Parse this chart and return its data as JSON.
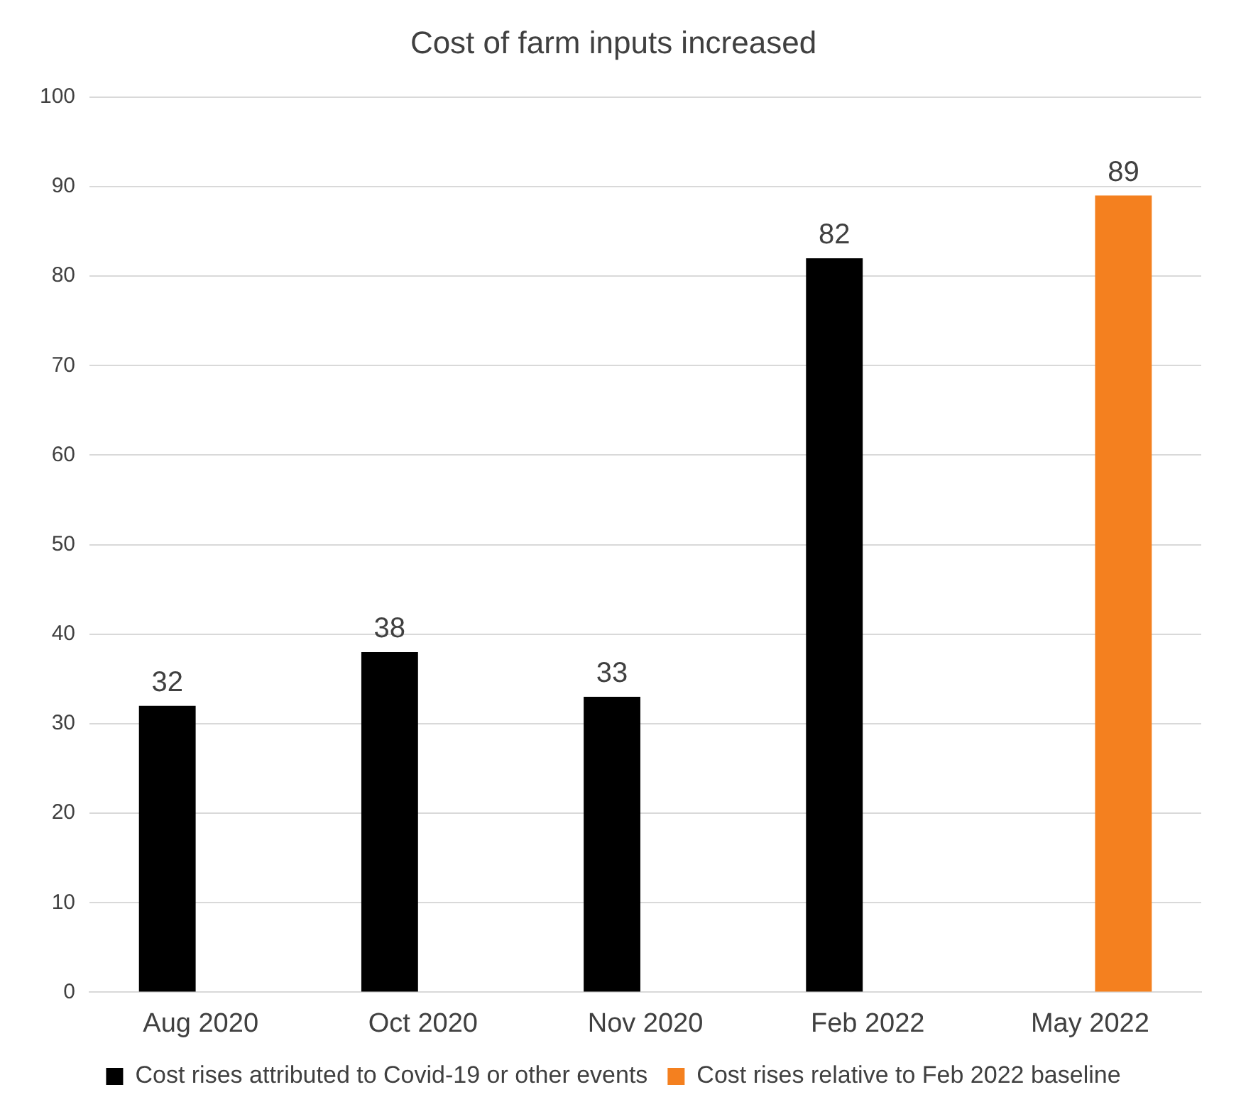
{
  "chart_data": {
    "type": "bar",
    "title": "Cost of farm inputs increased",
    "categories": [
      "Aug 2020",
      "Oct 2020",
      "Nov 2020",
      "Feb 2022",
      "May 2022"
    ],
    "series": [
      {
        "name": "Cost rises attributed to Covid-19 or other events",
        "color": "#000000",
        "values": [
          32,
          38,
          33,
          82,
          null
        ]
      },
      {
        "name": "Cost rises relative to Feb 2022 baseline",
        "color": "#f4801f",
        "values": [
          null,
          null,
          null,
          null,
          89
        ]
      }
    ],
    "ylim": [
      0,
      100
    ],
    "yticks": [
      0,
      10,
      20,
      30,
      40,
      50,
      60,
      70,
      80,
      90,
      100
    ],
    "grid": "y",
    "legend": "bottom",
    "data_labels": true
  }
}
